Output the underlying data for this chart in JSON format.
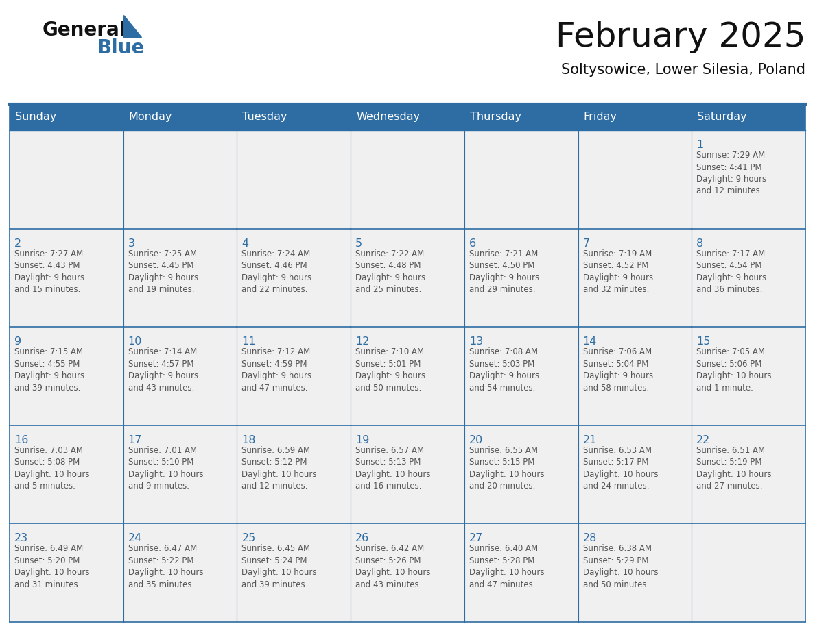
{
  "title": "February 2025",
  "subtitle": "Soltysowice, Lower Silesia, Poland",
  "header_bg_color": "#2E6DA4",
  "header_text_color": "#FFFFFF",
  "cell_bg_color": "#F0F0F0",
  "border_color": "#2E6DA4",
  "text_color": "#555555",
  "day_number_color": "#2E6DA4",
  "days_of_week": [
    "Sunday",
    "Monday",
    "Tuesday",
    "Wednesday",
    "Thursday",
    "Friday",
    "Saturday"
  ],
  "logo_general_color": "#111111",
  "logo_blue_color": "#2E6DA4",
  "weeks": [
    [
      {
        "day": null,
        "info": null
      },
      {
        "day": null,
        "info": null
      },
      {
        "day": null,
        "info": null
      },
      {
        "day": null,
        "info": null
      },
      {
        "day": null,
        "info": null
      },
      {
        "day": null,
        "info": null
      },
      {
        "day": 1,
        "info": "Sunrise: 7:29 AM\nSunset: 4:41 PM\nDaylight: 9 hours\nand 12 minutes."
      }
    ],
    [
      {
        "day": 2,
        "info": "Sunrise: 7:27 AM\nSunset: 4:43 PM\nDaylight: 9 hours\nand 15 minutes."
      },
      {
        "day": 3,
        "info": "Sunrise: 7:25 AM\nSunset: 4:45 PM\nDaylight: 9 hours\nand 19 minutes."
      },
      {
        "day": 4,
        "info": "Sunrise: 7:24 AM\nSunset: 4:46 PM\nDaylight: 9 hours\nand 22 minutes."
      },
      {
        "day": 5,
        "info": "Sunrise: 7:22 AM\nSunset: 4:48 PM\nDaylight: 9 hours\nand 25 minutes."
      },
      {
        "day": 6,
        "info": "Sunrise: 7:21 AM\nSunset: 4:50 PM\nDaylight: 9 hours\nand 29 minutes."
      },
      {
        "day": 7,
        "info": "Sunrise: 7:19 AM\nSunset: 4:52 PM\nDaylight: 9 hours\nand 32 minutes."
      },
      {
        "day": 8,
        "info": "Sunrise: 7:17 AM\nSunset: 4:54 PM\nDaylight: 9 hours\nand 36 minutes."
      }
    ],
    [
      {
        "day": 9,
        "info": "Sunrise: 7:15 AM\nSunset: 4:55 PM\nDaylight: 9 hours\nand 39 minutes."
      },
      {
        "day": 10,
        "info": "Sunrise: 7:14 AM\nSunset: 4:57 PM\nDaylight: 9 hours\nand 43 minutes."
      },
      {
        "day": 11,
        "info": "Sunrise: 7:12 AM\nSunset: 4:59 PM\nDaylight: 9 hours\nand 47 minutes."
      },
      {
        "day": 12,
        "info": "Sunrise: 7:10 AM\nSunset: 5:01 PM\nDaylight: 9 hours\nand 50 minutes."
      },
      {
        "day": 13,
        "info": "Sunrise: 7:08 AM\nSunset: 5:03 PM\nDaylight: 9 hours\nand 54 minutes."
      },
      {
        "day": 14,
        "info": "Sunrise: 7:06 AM\nSunset: 5:04 PM\nDaylight: 9 hours\nand 58 minutes."
      },
      {
        "day": 15,
        "info": "Sunrise: 7:05 AM\nSunset: 5:06 PM\nDaylight: 10 hours\nand 1 minute."
      }
    ],
    [
      {
        "day": 16,
        "info": "Sunrise: 7:03 AM\nSunset: 5:08 PM\nDaylight: 10 hours\nand 5 minutes."
      },
      {
        "day": 17,
        "info": "Sunrise: 7:01 AM\nSunset: 5:10 PM\nDaylight: 10 hours\nand 9 minutes."
      },
      {
        "day": 18,
        "info": "Sunrise: 6:59 AM\nSunset: 5:12 PM\nDaylight: 10 hours\nand 12 minutes."
      },
      {
        "day": 19,
        "info": "Sunrise: 6:57 AM\nSunset: 5:13 PM\nDaylight: 10 hours\nand 16 minutes."
      },
      {
        "day": 20,
        "info": "Sunrise: 6:55 AM\nSunset: 5:15 PM\nDaylight: 10 hours\nand 20 minutes."
      },
      {
        "day": 21,
        "info": "Sunrise: 6:53 AM\nSunset: 5:17 PM\nDaylight: 10 hours\nand 24 minutes."
      },
      {
        "day": 22,
        "info": "Sunrise: 6:51 AM\nSunset: 5:19 PM\nDaylight: 10 hours\nand 27 minutes."
      }
    ],
    [
      {
        "day": 23,
        "info": "Sunrise: 6:49 AM\nSunset: 5:20 PM\nDaylight: 10 hours\nand 31 minutes."
      },
      {
        "day": 24,
        "info": "Sunrise: 6:47 AM\nSunset: 5:22 PM\nDaylight: 10 hours\nand 35 minutes."
      },
      {
        "day": 25,
        "info": "Sunrise: 6:45 AM\nSunset: 5:24 PM\nDaylight: 10 hours\nand 39 minutes."
      },
      {
        "day": 26,
        "info": "Sunrise: 6:42 AM\nSunset: 5:26 PM\nDaylight: 10 hours\nand 43 minutes."
      },
      {
        "day": 27,
        "info": "Sunrise: 6:40 AM\nSunset: 5:28 PM\nDaylight: 10 hours\nand 47 minutes."
      },
      {
        "day": 28,
        "info": "Sunrise: 6:38 AM\nSunset: 5:29 PM\nDaylight: 10 hours\nand 50 minutes."
      },
      {
        "day": null,
        "info": null
      }
    ]
  ]
}
